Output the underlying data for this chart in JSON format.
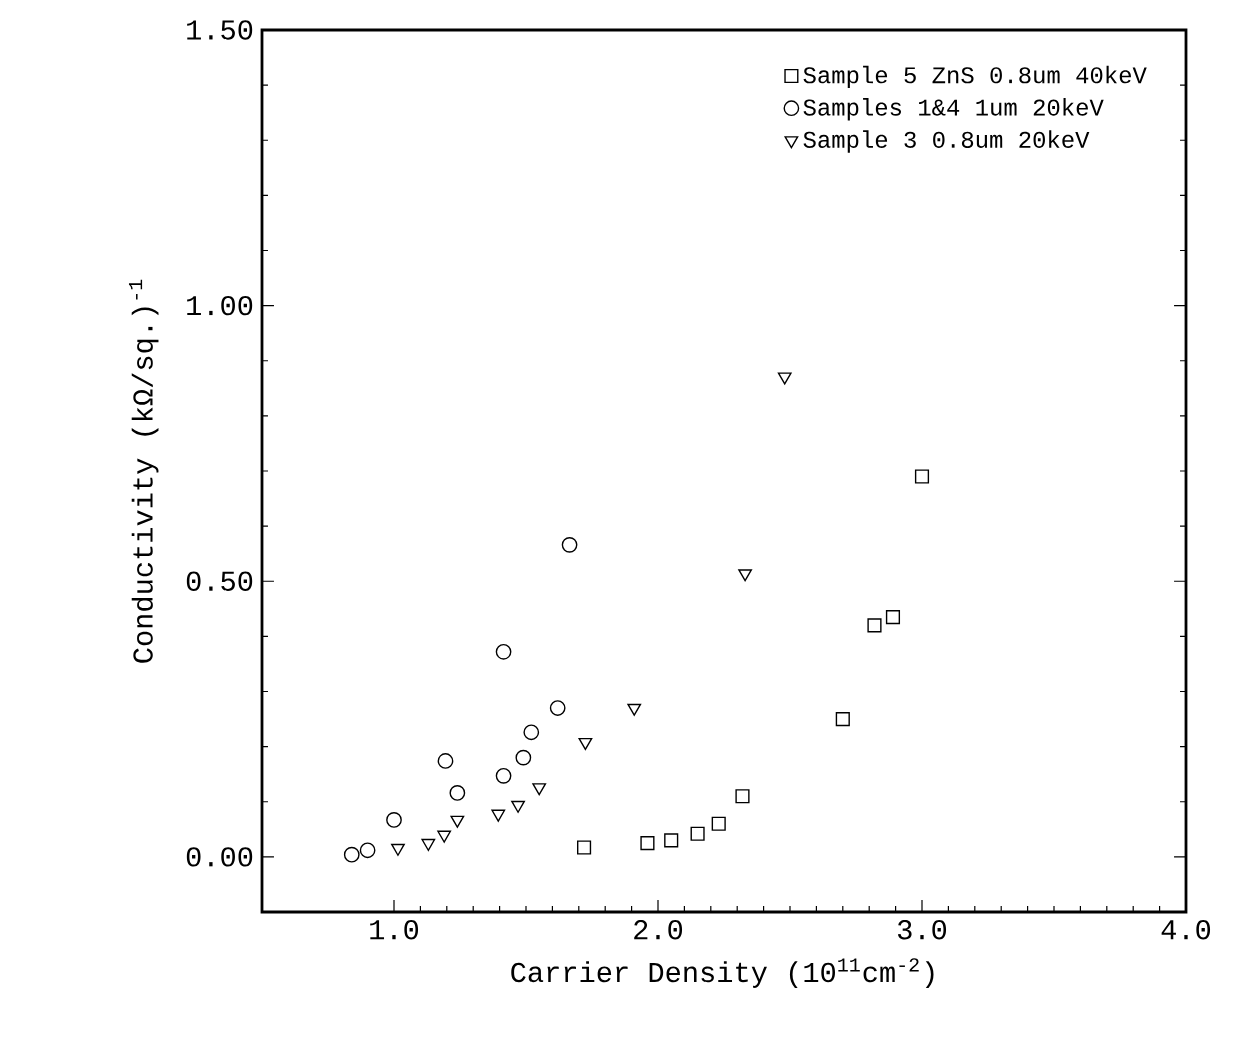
{
  "chart_data": {
    "type": "scatter",
    "xlabel": "Carrier Density (10$^{11}$cm$^{-2}$)",
    "ylabel": "Conductivity  (kΩ/sq.)$^{-1}$",
    "xlim": [
      0.5,
      4.0
    ],
    "ylim": [
      -0.1,
      1.5
    ],
    "xticks": [
      {
        "value": 1.0,
        "label": "1.0"
      },
      {
        "value": 2.0,
        "label": "2.0"
      },
      {
        "value": 3.0,
        "label": "3.0"
      },
      {
        "value": 4.0,
        "label": "4.0"
      }
    ],
    "yticks": [
      {
        "value": 0,
        "label": "0.00"
      },
      {
        "value": 0.5,
        "label": "0.50"
      },
      {
        "value": 1.0,
        "label": "1.00"
      },
      {
        "value": 1.5,
        "label": "1.50"
      }
    ],
    "grid": false,
    "legend": "top right",
    "series": [
      {
        "name": "Sample 5  ZnS  0.8um  40keV",
        "color": "#000000",
        "marker": "square",
        "x": [
          1.72,
          1.96,
          2.05,
          2.15,
          2.23,
          2.32,
          2.7,
          2.82,
          2.89,
          3.0
        ],
        "values": [
          0.017,
          0.025,
          0.03,
          0.042,
          0.06,
          0.11,
          0.25,
          0.42,
          0.435,
          0.69
        ]
      },
      {
        "name": "Samples 1&4  1um  20keV",
        "color": "#000000",
        "marker": "circle",
        "x": [
          0.84,
          0.9,
          1.0,
          1.195,
          1.24,
          1.415,
          1.415,
          1.49,
          1.52,
          1.62,
          1.665
        ],
        "values": [
          0.004,
          0.012,
          0.067,
          0.174,
          0.116,
          0.372,
          0.147,
          0.18,
          0.226,
          0.27,
          0.566
        ]
      },
      {
        "name": "Sample 3  0.8um  20keV",
        "color": "#000000",
        "marker": "triangle",
        "x": [
          1.015,
          1.13,
          1.19,
          1.24,
          1.395,
          1.47,
          1.55,
          1.725,
          1.91,
          2.33,
          2.48
        ],
        "values": [
          0.016,
          0.025,
          0.04,
          0.067,
          0.078,
          0.094,
          0.126,
          0.208,
          0.27,
          0.514,
          0.871
        ]
      }
    ]
  }
}
